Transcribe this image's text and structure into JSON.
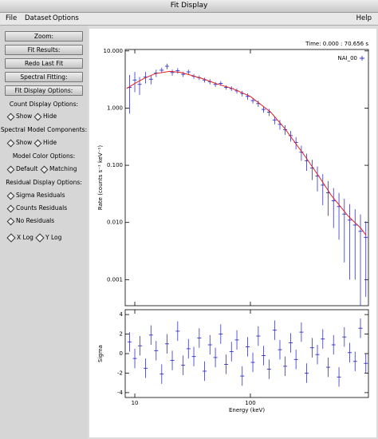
{
  "window": {
    "title": "Fit Display"
  },
  "menu": {
    "left": [
      "File",
      "Dataset",
      "Options"
    ],
    "right": "Help"
  },
  "sidebar": {
    "buttons": [
      "Zoom:",
      "Fit Results:",
      "Redo Last Fit",
      "Spectral Fitting:",
      "Fit Display Options:"
    ],
    "groups": [
      {
        "label": "Count Display Options:",
        "options": [
          "Show",
          "Hide"
        ]
      },
      {
        "label": "Spectral Model Components:",
        "options": [
          "Show",
          "Hide"
        ]
      },
      {
        "label": "Model Color Options:",
        "options": [
          "Default",
          "Matching"
        ]
      },
      {
        "label": "Residual Display Options:",
        "options": [
          "Sigma Residuals",
          "Counts Residuals",
          "No Residuals"
        ]
      }
    ],
    "checkboxes": [
      "X Log",
      "Y Log"
    ]
  },
  "chart_data": [
    {
      "type": "scatter",
      "annotation": "Time: 0.000 : 70.656 s",
      "y_label": "Rate (counts s⁻¹ keV⁻¹)",
      "xlog": true,
      "ylog": true,
      "xlim": [
        8.26,
        1050
      ],
      "ylim": [
        0.00035,
        10.6
      ],
      "yticks": [
        {
          "value": 10,
          "label": "10.000"
        },
        {
          "value": 1,
          "label": "1.000"
        },
        {
          "value": 0.1,
          "label": "0.100"
        },
        {
          "value": 0.01,
          "label": "0.010"
        },
        {
          "value": 0.001,
          "label": "0.001"
        }
      ],
      "series": [
        {
          "name": "NAI_00",
          "color": "#3030d0",
          "x": [
            9,
            10,
            11,
            12.4,
            13.8,
            15.3,
            17.1,
            19,
            21.1,
            23.5,
            26.2,
            29.1,
            32.4,
            36.1,
            40.2,
            44.7,
            49.8,
            55.4,
            61.7,
            68.6,
            76.4,
            85,
            94.6,
            105,
            117,
            130,
            145,
            162,
            180,
            200,
            223,
            248,
            276,
            307,
            342,
            380,
            423,
            471,
            524,
            584,
            650,
            723,
            805,
            896,
            997
          ],
          "values": [
            2.3,
            3.1,
            2.6,
            3.5,
            3.2,
            4.1,
            4.6,
            5.4,
            4.2,
            4.5,
            3.9,
            4.3,
            3.6,
            3.4,
            3.1,
            2.9,
            2.6,
            2.7,
            2.3,
            2.2,
            2.0,
            1.8,
            1.6,
            1.35,
            1.2,
            0.95,
            0.85,
            0.62,
            0.52,
            0.42,
            0.33,
            0.25,
            0.17,
            0.12,
            0.09,
            0.065,
            0.045,
            0.033,
            0.024,
            0.019,
            0.014,
            0.011,
            0.009,
            0.007,
            0.0055
          ],
          "errors": [
            1.5,
            1.2,
            0.9,
            0.8,
            0.6,
            0.6,
            0.5,
            0.6,
            0.5,
            0.5,
            0.4,
            0.4,
            0.35,
            0.3,
            0.3,
            0.3,
            0.25,
            0.25,
            0.2,
            0.2,
            0.2,
            0.2,
            0.2,
            0.15,
            0.15,
            0.12,
            0.12,
            0.1,
            0.1,
            0.08,
            0.07,
            0.06,
            0.05,
            0.04,
            0.035,
            0.03,
            0.025,
            0.02,
            0.016,
            0.014,
            0.012,
            0.01,
            0.008,
            0.0068,
            0.005
          ]
        },
        {
          "color": "#e02020",
          "x": [
            8.5,
            10,
            12,
            15,
            20,
            25,
            30,
            40,
            50,
            70,
            100,
            150,
            200,
            300,
            400,
            500,
            700,
            900,
            1000
          ],
          "values": [
            2.2,
            2.7,
            3.3,
            4.0,
            4.4,
            4.2,
            3.8,
            3.2,
            2.7,
            2.2,
            1.6,
            0.85,
            0.43,
            0.14,
            0.06,
            0.03,
            0.013,
            0.008,
            0.006
          ]
        }
      ]
    },
    {
      "type": "residual",
      "x_label": "Energy (keV)",
      "y_label": "Sigma",
      "xlog": true,
      "xlim": [
        8.26,
        1050
      ],
      "ylim": [
        -4.5,
        4.5
      ],
      "xticks": [
        10,
        100
      ],
      "yticks": [
        -4,
        -2,
        0,
        2,
        4
      ],
      "color": "#3030d0",
      "x": [
        9,
        10,
        11.1,
        12.4,
        13.8,
        15.3,
        17.1,
        19,
        21.1,
        23.5,
        26.2,
        29.1,
        32.4,
        36.1,
        40.2,
        44.7,
        49.8,
        55.4,
        61.7,
        68.6,
        76.4,
        85,
        94.6,
        105,
        117,
        130,
        145,
        162,
        180,
        200,
        223,
        248,
        276,
        307,
        342,
        380,
        423,
        471,
        524,
        584,
        650,
        723,
        805,
        896,
        997
      ],
      "values": [
        1.2,
        -0.5,
        0.8,
        -1.5,
        1.9,
        0.3,
        -2.1,
        1.0,
        -0.7,
        2.3,
        -1.2,
        0.5,
        -0.3,
        1.6,
        -1.8,
        0.9,
        -0.4,
        2.0,
        -1.1,
        0.2,
        1.4,
        -2.3,
        0.7,
        -0.9,
        1.8,
        -0.2,
        -1.6,
        2.4,
        0.4,
        -1.3,
        1.1,
        -0.6,
        2.2,
        -2.0,
        0.6,
        -0.1,
        1.5,
        -1.4,
        0.9,
        -2.4,
        1.7,
        0.1,
        -0.8,
        2.6,
        -1.0
      ],
      "errors": [
        1,
        1,
        1,
        1,
        1,
        1,
        1,
        1,
        1,
        1,
        1,
        1,
        1,
        1,
        1,
        1,
        1,
        1,
        1,
        1,
        1,
        1,
        1,
        1,
        1,
        1,
        1,
        1,
        1,
        1,
        1,
        1,
        1,
        1,
        1,
        1,
        1,
        1,
        1,
        1,
        1,
        1,
        1,
        1,
        1
      ]
    }
  ]
}
